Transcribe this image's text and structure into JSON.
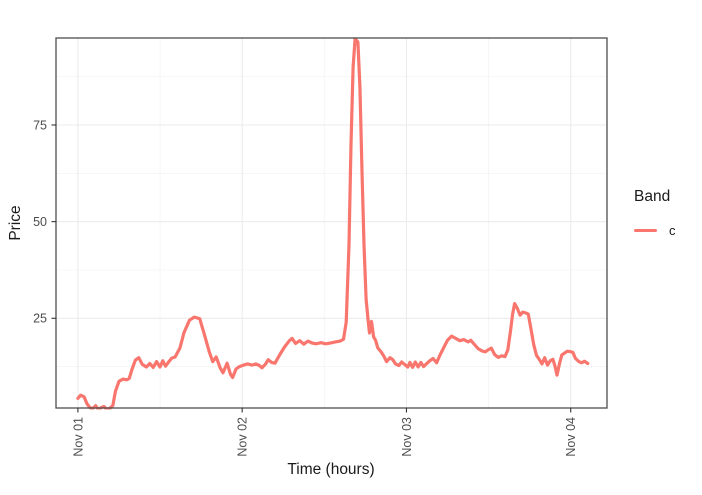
{
  "chart": {
    "y_axis_title": "Price",
    "x_axis_title": "Time (hours)",
    "legend": {
      "title": "Band",
      "items": [
        {
          "label": "c",
          "color": "#F8766D"
        }
      ]
    },
    "colors": {
      "line": "#F8766D",
      "panel_background": "#FFFFFF",
      "panel_border": "#4D4D4D",
      "grid_major": "#EBEBEB",
      "grid_minor": "#F4F4F4",
      "tick_mark": "#333333",
      "tick_label": "#4D4D4D",
      "axis_title": "#1A1A1A"
    },
    "chart_data": {
      "type": "line",
      "title": "",
      "xlabel": "Time (hours)",
      "ylabel": "Price",
      "x_unit": "hours since Nov 01 00:00",
      "x_domain": [
        -3.2,
        77.3
      ],
      "y_domain": [
        1.8,
        97.5
      ],
      "grid": true,
      "legend_position": "right",
      "x_ticks": [
        {
          "pos": 0,
          "label": "Nov 01"
        },
        {
          "pos": 24,
          "label": "Nov 02"
        },
        {
          "pos": 48,
          "label": "Nov 03"
        },
        {
          "pos": 72,
          "label": "Nov 04"
        }
      ],
      "x_minor": [
        12,
        36,
        60
      ],
      "y_ticks": [
        {
          "pos": 25,
          "label": "25"
        },
        {
          "pos": 50,
          "label": "50"
        },
        {
          "pos": 75,
          "label": "75"
        }
      ],
      "y_minor": [
        12.5,
        37.5,
        62.5,
        87.5
      ],
      "series": [
        {
          "name": "c",
          "color": "#F8766D",
          "points": [
            [
              0,
              4.3
            ],
            [
              0.4,
              5.1
            ],
            [
              0.9,
              4.7
            ],
            [
              1.3,
              3.0
            ],
            [
              1.7,
              2.0
            ],
            [
              2.1,
              1.6
            ],
            [
              2.6,
              2.4
            ],
            [
              3.0,
              1.4
            ],
            [
              3.4,
              1.9
            ],
            [
              3.8,
              2.2
            ],
            [
              4.2,
              1.5
            ],
            [
              4.7,
              1.8
            ],
            [
              5.1,
              2.4
            ],
            [
              5.5,
              6.2
            ],
            [
              6.0,
              8.7
            ],
            [
              6.6,
              9.3
            ],
            [
              7.1,
              9.1
            ],
            [
              7.5,
              9.4
            ],
            [
              7.9,
              11.8
            ],
            [
              8.4,
              14.2
            ],
            [
              8.9,
              14.8
            ],
            [
              9.4,
              13.1
            ],
            [
              10.0,
              12.4
            ],
            [
              10.5,
              13.3
            ],
            [
              11.0,
              12.3
            ],
            [
              11.5,
              13.8
            ],
            [
              12.0,
              12.4
            ],
            [
              12.4,
              14.0
            ],
            [
              12.8,
              12.6
            ],
            [
              13.2,
              13.6
            ],
            [
              13.7,
              14.7
            ],
            [
              14.2,
              15.0
            ],
            [
              14.9,
              17.3
            ],
            [
              15.5,
              21.3
            ],
            [
              16.3,
              24.5
            ],
            [
              17.0,
              25.3
            ],
            [
              17.8,
              24.9
            ],
            [
              18.5,
              20.7
            ],
            [
              19.2,
              16.3
            ],
            [
              19.7,
              13.8
            ],
            [
              20.2,
              15.0
            ],
            [
              20.8,
              12.1
            ],
            [
              21.2,
              10.9
            ],
            [
              21.8,
              13.4
            ],
            [
              22.3,
              10.5
            ],
            [
              22.6,
              9.7
            ],
            [
              23.1,
              11.9
            ],
            [
              23.6,
              12.5
            ],
            [
              24.2,
              12.9
            ],
            [
              24.8,
              13.2
            ],
            [
              25.4,
              12.9
            ],
            [
              26.0,
              13.2
            ],
            [
              26.5,
              12.8
            ],
            [
              26.9,
              12.2
            ],
            [
              27.4,
              13.1
            ],
            [
              27.8,
              14.3
            ],
            [
              28.3,
              13.6
            ],
            [
              28.8,
              13.4
            ],
            [
              29.5,
              15.6
            ],
            [
              30.2,
              17.6
            ],
            [
              30.9,
              19.2
            ],
            [
              31.3,
              19.8
            ],
            [
              31.8,
              18.5
            ],
            [
              32.4,
              19.2
            ],
            [
              33.0,
              18.3
            ],
            [
              33.6,
              19.1
            ],
            [
              34.2,
              18.6
            ],
            [
              34.8,
              18.4
            ],
            [
              35.5,
              18.7
            ],
            [
              36.2,
              18.4
            ],
            [
              36.9,
              18.6
            ],
            [
              37.6,
              18.9
            ],
            [
              38.3,
              19.1
            ],
            [
              38.8,
              19.6
            ],
            [
              39.2,
              24.0
            ],
            [
              39.6,
              44.0
            ],
            [
              39.9,
              70.0
            ],
            [
              40.2,
              90.0
            ],
            [
              40.5,
              97.3
            ],
            [
              40.9,
              96.5
            ],
            [
              41.2,
              85.0
            ],
            [
              41.5,
              63.0
            ],
            [
              41.8,
              44.0
            ],
            [
              42.1,
              30.0
            ],
            [
              42.4,
              24.5
            ],
            [
              42.6,
              21.2
            ],
            [
              42.9,
              24.2
            ],
            [
              43.2,
              20.2
            ],
            [
              43.5,
              19.3
            ],
            [
              43.8,
              17.4
            ],
            [
              44.3,
              16.3
            ],
            [
              44.7,
              15.2
            ],
            [
              45.1,
              13.8
            ],
            [
              45.6,
              14.8
            ],
            [
              46.0,
              14.3
            ],
            [
              46.4,
              13.2
            ],
            [
              46.9,
              12.8
            ],
            [
              47.3,
              13.7
            ],
            [
              47.7,
              13.1
            ],
            [
              48.2,
              12.4
            ],
            [
              48.5,
              13.6
            ],
            [
              48.9,
              12.3
            ],
            [
              49.3,
              13.7
            ],
            [
              49.7,
              12.4
            ],
            [
              50.1,
              13.6
            ],
            [
              50.5,
              12.5
            ],
            [
              50.9,
              13.2
            ],
            [
              51.4,
              14.0
            ],
            [
              51.9,
              14.6
            ],
            [
              52.4,
              13.5
            ],
            [
              52.9,
              15.5
            ],
            [
              53.5,
              17.6
            ],
            [
              54.0,
              19.3
            ],
            [
              54.6,
              20.4
            ],
            [
              55.2,
              19.8
            ],
            [
              55.8,
              19.2
            ],
            [
              56.4,
              19.5
            ],
            [
              57.0,
              18.9
            ],
            [
              57.4,
              19.3
            ],
            [
              58.0,
              18.1
            ],
            [
              58.5,
              17.1
            ],
            [
              59.0,
              16.6
            ],
            [
              59.5,
              16.3
            ],
            [
              59.9,
              16.8
            ],
            [
              60.4,
              17.3
            ],
            [
              60.9,
              15.6
            ],
            [
              61.4,
              14.9
            ],
            [
              61.9,
              15.3
            ],
            [
              62.4,
              15.1
            ],
            [
              62.8,
              16.8
            ],
            [
              63.2,
              21.7
            ],
            [
              63.5,
              25.9
            ],
            [
              63.8,
              28.8
            ],
            [
              64.2,
              27.6
            ],
            [
              64.6,
              25.8
            ],
            [
              65.0,
              26.6
            ],
            [
              65.4,
              26.4
            ],
            [
              65.8,
              26.1
            ],
            [
              66.2,
              22.2
            ],
            [
              66.6,
              18.1
            ],
            [
              67.0,
              15.4
            ],
            [
              67.4,
              14.4
            ],
            [
              67.8,
              13.2
            ],
            [
              68.2,
              14.8
            ],
            [
              68.6,
              12.9
            ],
            [
              69.0,
              14.0
            ],
            [
              69.4,
              14.4
            ],
            [
              69.7,
              12.6
            ],
            [
              70.0,
              10.3
            ],
            [
              70.4,
              13.6
            ],
            [
              70.7,
              15.5
            ],
            [
              71.1,
              16.0
            ],
            [
              71.5,
              16.5
            ],
            [
              71.9,
              16.4
            ],
            [
              72.3,
              16.2
            ],
            [
              72.7,
              14.6
            ],
            [
              73.2,
              13.8
            ],
            [
              73.6,
              13.5
            ],
            [
              74.0,
              13.9
            ],
            [
              74.5,
              13.3
            ]
          ]
        }
      ]
    }
  }
}
